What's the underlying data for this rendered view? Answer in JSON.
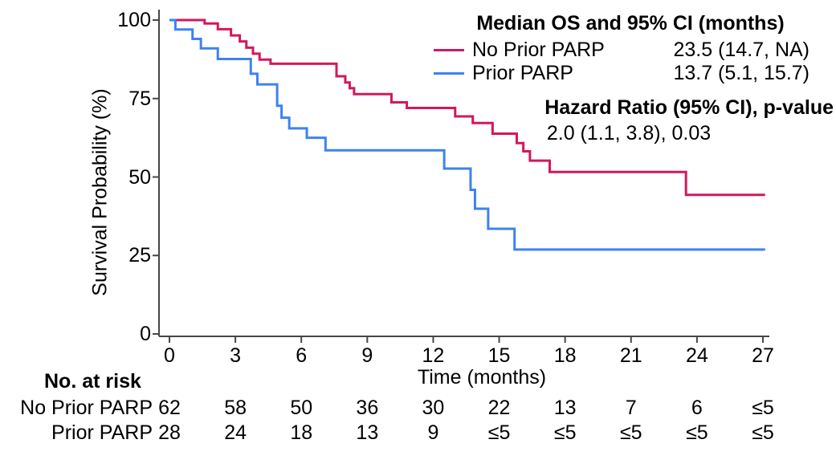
{
  "chart_data": {
    "type": "line",
    "subtype": "kaplan-meier-step",
    "title": "",
    "xlabel": "Time (months)",
    "ylabel": "Survival Probability (%)",
    "xlim": [
      0,
      27.1
    ],
    "ylim": [
      0,
      100
    ],
    "xticks": [
      0,
      3,
      6,
      9,
      12,
      15,
      18,
      21,
      24,
      27
    ],
    "yticks": [
      0,
      25,
      50,
      75,
      100
    ],
    "grid": false,
    "legend_position": "top-right",
    "x_draw_end": 27.1,
    "series": [
      {
        "name": "No Prior PARP",
        "color": "#D2185E",
        "steps": [
          [
            0,
            100
          ],
          [
            1.6,
            98.9
          ],
          [
            2.2,
            97.1
          ],
          [
            2.8,
            95.1
          ],
          [
            3.2,
            93.2
          ],
          [
            3.5,
            91.2
          ],
          [
            3.8,
            89.3
          ],
          [
            4.1,
            87.4
          ],
          [
            4.6,
            86.1
          ],
          [
            7.6,
            82.1
          ],
          [
            8.0,
            80.1
          ],
          [
            8.2,
            78.3
          ],
          [
            8.4,
            76.4
          ],
          [
            10.1,
            73.8
          ],
          [
            10.8,
            72.0
          ],
          [
            13.0,
            69.3
          ],
          [
            13.8,
            67.2
          ],
          [
            14.7,
            63.8
          ],
          [
            15.8,
            60.8
          ],
          [
            16.1,
            58.2
          ],
          [
            16.4,
            55.2
          ],
          [
            17.3,
            51.6
          ],
          [
            23.5,
            44.3
          ]
        ]
      },
      {
        "name": "Prior PARP",
        "color": "#3E82F1",
        "steps": [
          [
            0,
            100
          ],
          [
            0.27,
            97.0
          ],
          [
            1.05,
            94.0
          ],
          [
            1.43,
            91.0
          ],
          [
            2.2,
            87.6
          ],
          [
            3.7,
            82.9
          ],
          [
            4.0,
            79.5
          ],
          [
            4.9,
            72.7
          ],
          [
            5.1,
            68.9
          ],
          [
            5.45,
            65.5
          ],
          [
            6.25,
            62.5
          ],
          [
            7.1,
            58.5
          ],
          [
            12.5,
            52.7
          ],
          [
            13.7,
            45.9
          ],
          [
            13.9,
            39.9
          ],
          [
            14.5,
            33.5
          ],
          [
            15.7,
            26.9
          ]
        ]
      }
    ]
  },
  "legend": {
    "title": "Median OS and 95% CI (months)",
    "rows": [
      {
        "label": "No Prior PARP",
        "value": "23.5 (14.7, NA)",
        "color": "#D2185E"
      },
      {
        "label": "Prior PARP",
        "value": "13.7 (5.1, 15.7)",
        "color": "#3E82F1"
      }
    ]
  },
  "hazard": {
    "title": "Hazard Ratio (95% CI), p-value",
    "value": "2.0 (1.1, 3.8), 0.03"
  },
  "risk_table": {
    "header": "No. at risk",
    "rows": [
      {
        "label": "No Prior PARP",
        "counts": [
          "62",
          "58",
          "50",
          "36",
          "30",
          "22",
          "13",
          "7",
          "6",
          "≤5"
        ]
      },
      {
        "label": "Prior PARP",
        "counts": [
          "28",
          "24",
          "18",
          "13",
          "9",
          "≤5",
          "≤5",
          "≤5",
          "≤5",
          "≤5"
        ]
      }
    ]
  },
  "colors": {
    "axis": "#464646",
    "text": "#000000",
    "background": "#ffffff"
  }
}
